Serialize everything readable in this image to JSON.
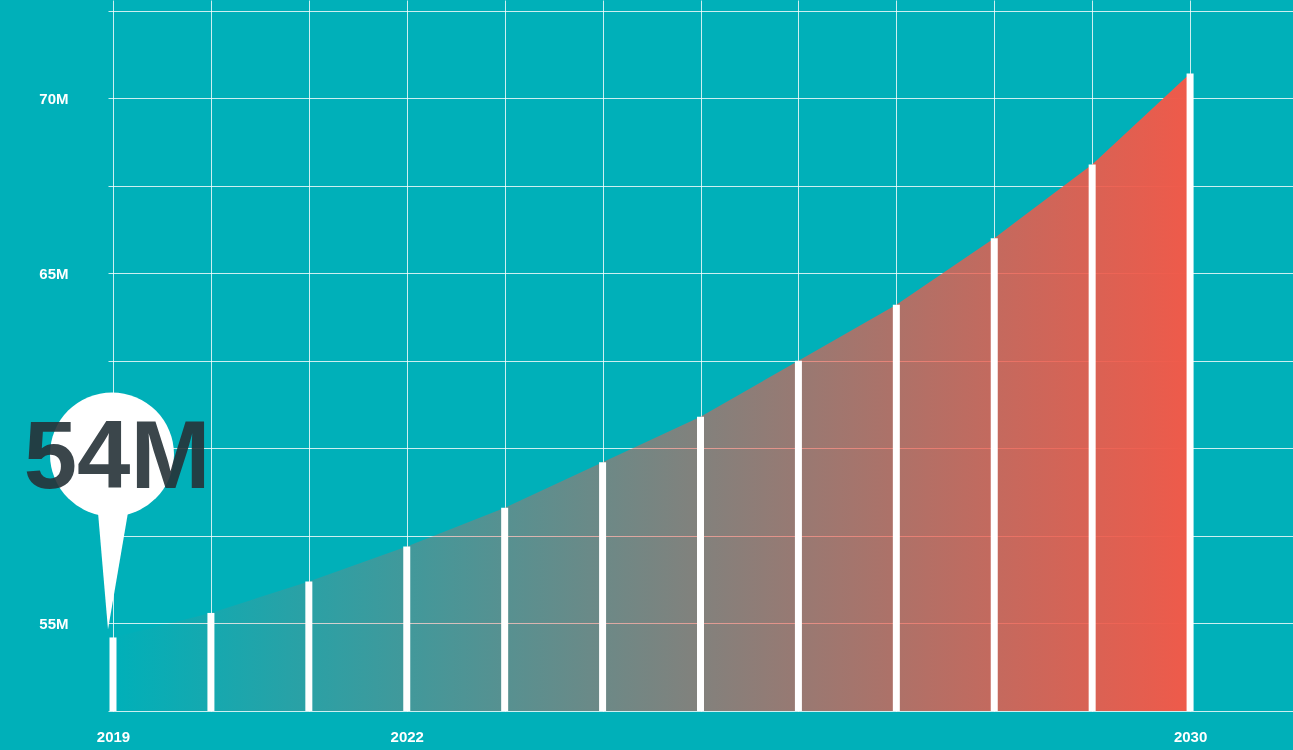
{
  "chart_data": {
    "type": "area",
    "x": [
      2019,
      2020,
      2021,
      2022,
      2023,
      2024,
      2025,
      2026,
      2027,
      2028,
      2029,
      2030
    ],
    "series": [
      {
        "color": "#ef5a4a",
        "values": [
          54.6,
          55.3,
          56.2,
          57.2,
          58.3,
          59.6,
          60.9,
          62.5,
          64.1,
          66.0,
          68.1,
          70.7
        ]
      },
      {
        "type": "bar",
        "color": "#ffffff",
        "values": [
          54.6,
          55.3,
          56.2,
          57.2,
          58.3,
          59.6,
          60.9,
          62.5,
          64.1,
          66.0,
          68.1,
          70.7
        ]
      }
    ],
    "xlim": [
      2019,
      2031
    ],
    "xticks": [
      2019,
      {
        "value": 2020,
        "label": null
      },
      {
        "value": 2021,
        "label": null
      },
      2022,
      {
        "value": 2023,
        "label": null
      },
      {
        "value": 2024,
        "label": null
      },
      {
        "value": 2025,
        "label": null
      },
      {
        "value": 2026,
        "label": null
      },
      {
        "value": 2027,
        "label": null
      },
      {
        "value": 2028,
        "label": null
      },
      {
        "value": 2029,
        "label": null
      },
      2030
    ],
    "ylim": [
      52.5,
      72.8
    ],
    "yticks": [
      {
        "value": 52.5,
        "label": null
      },
      {
        "value": 55,
        "label": "55M"
      },
      {
        "value": 57.5,
        "label": null
      },
      {
        "value": 60,
        "label": null
      },
      {
        "value": 62.5,
        "label": null
      },
      {
        "value": 65,
        "label": "65M"
      },
      {
        "value": 67.5,
        "label": null
      },
      {
        "value": 70,
        "label": "70M"
      },
      {
        "value": 72.5,
        "label": null
      }
    ],
    "grid": true,
    "annotations": [
      {
        "text": "54M",
        "x": 2019,
        "y": 54.6
      }
    ]
  }
}
